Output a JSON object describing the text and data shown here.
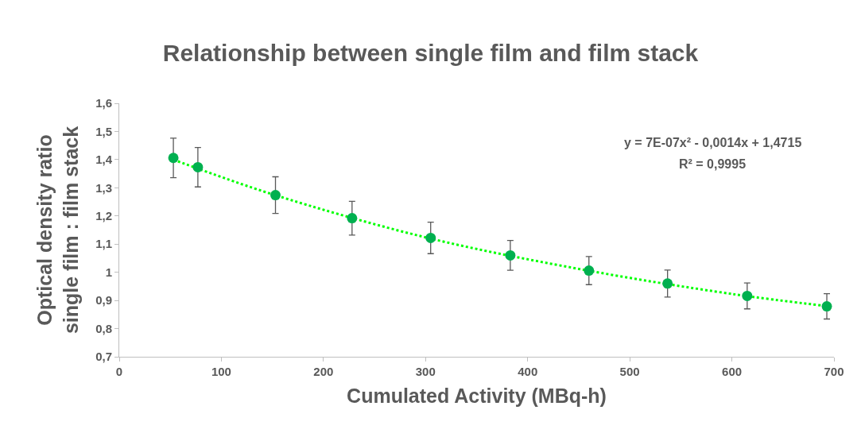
{
  "chart_data": {
    "type": "scatter",
    "title": "Relationship between single film and film stack",
    "xlabel": "Cumulated Activity (MBq-h)",
    "ylabel": "Optical density ratio\nsingle film : film stack",
    "annotations": [
      "y = 7E-07x² - 0,0014x + 1,4715",
      "R² = 0,9995"
    ],
    "series": [
      {
        "color": "#00b050",
        "x": [
          53,
          77,
          153,
          228,
          305,
          383,
          460,
          537,
          615,
          693
        ],
        "values": [
          1.406,
          1.373,
          1.274,
          1.192,
          1.122,
          1.06,
          1.006,
          0.96,
          0.916,
          0.879
        ],
        "errors": [
          0.07,
          0.07,
          0.065,
          0.06,
          0.056,
          0.053,
          0.05,
          0.048,
          0.046,
          0.045
        ],
        "marker": "circle"
      },
      {
        "type": "line",
        "color": "#00ff00",
        "x": [
          53,
          150,
          300,
          450,
          600,
          693
        ],
        "values": [
          1.4,
          1.277,
          1.124,
          1.012,
          0.923,
          0.88
        ],
        "line_style": "dotted",
        "marker": "none"
      }
    ],
    "xlim": [
      0,
      700
    ],
    "xticks": [
      0,
      100,
      200,
      300,
      400,
      500,
      600,
      700
    ],
    "ylim": [
      0.7,
      1.6
    ],
    "yticks": [
      {
        "value": 0.7,
        "label": "0,7"
      },
      {
        "value": 0.8,
        "label": "0,8"
      },
      {
        "value": 0.9,
        "label": "0,9"
      },
      1,
      {
        "value": 1.1,
        "label": "1,1"
      },
      {
        "value": 1.2,
        "label": "1,2"
      },
      {
        "value": 1.3,
        "label": "1,3"
      },
      {
        "value": 1.4,
        "label": "1,4"
      },
      {
        "value": 1.5,
        "label": "1,5"
      },
      {
        "value": 1.6,
        "label": "1,6"
      }
    ],
    "grid": false,
    "legend": false
  }
}
